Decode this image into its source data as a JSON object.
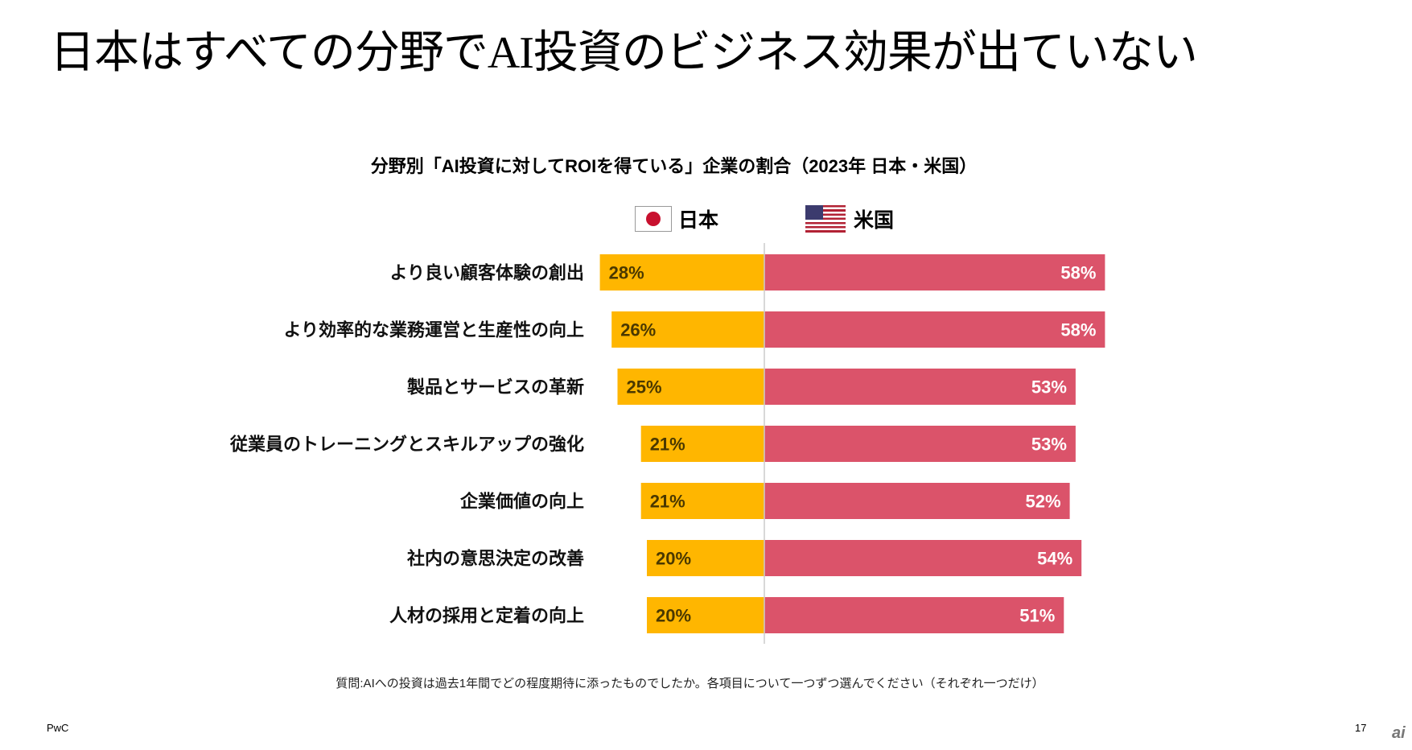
{
  "title": "日本はすべての分野でAI投資のビジネス効果が出ていない",
  "legend": {
    "japan": "日本",
    "us": "米国"
  },
  "chart_data": {
    "type": "bar",
    "title": "分野別「AI投資に対してROIを得ている」企業の割合（2023年 日本・米国）",
    "categories": [
      "より良い顧客体験の創出",
      "より効率的な業務運営と生産性の向上",
      "製品とサービスの革新",
      "従業員のトレーニングとスキルアップの強化",
      "企業価値の向上",
      "社内の意思決定の改善",
      "人材の採用と定着の向上"
    ],
    "series": [
      {
        "name": "日本",
        "color": "#FFB600",
        "values": [
          28,
          26,
          25,
          21,
          21,
          20,
          20
        ]
      },
      {
        "name": "米国",
        "color": "#DB536A",
        "values": [
          58,
          58,
          53,
          53,
          52,
          54,
          51
        ]
      }
    ],
    "unit": "%",
    "layout": "diverging"
  },
  "question": "質問:AIへの投資は過去1年間でどの程度期待に添ったものでしたか。各項目について一つずつ選んでください（それぞれ一つだけ）",
  "footer": {
    "brand": "PwC",
    "page": "17",
    "logo": "ai"
  }
}
